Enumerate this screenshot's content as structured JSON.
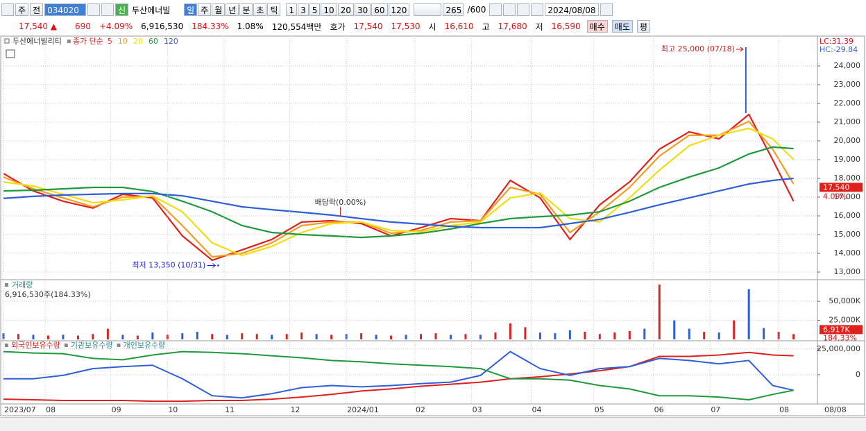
{
  "toolbar": {
    "market": "주",
    "prev": "전",
    "code": "034020",
    "badge": "신",
    "name": "두산에너빌",
    "periods": [
      "일",
      "주",
      "월",
      "년",
      "분",
      "초",
      "틱"
    ],
    "intervals": [
      "1",
      "3",
      "5",
      "10",
      "20",
      "30",
      "60",
      "120"
    ],
    "count": "265",
    "max": "/600",
    "date": "2024/08/08"
  },
  "quote": {
    "price": "17,540 ▲",
    "change": "690",
    "rate": "+4.09%",
    "volume": "6,916,530",
    "volume_ratio": "184.33%",
    "turnover": "1.08%",
    "amount": "120,554백만",
    "ask_label": "호가",
    "ask": "17,540",
    "bid": "17,530",
    "open_label": "시",
    "open": "16,610",
    "high_label": "고",
    "high": "17,680",
    "low_label": "저",
    "low": "16,590",
    "buy": "매수",
    "sell": "매도",
    "avg": "평"
  },
  "chart_data": [
    {
      "type": "line",
      "legend_name": "두산에너빌리티",
      "legend_ma_label": "종가 단순",
      "corner_labels": [
        "LC:31.39",
        "HC:-29.84"
      ],
      "x": [
        0,
        10,
        20,
        30,
        40,
        50,
        60,
        70,
        80,
        90,
        100,
        110,
        120,
        130,
        140,
        150,
        160,
        170,
        180,
        190,
        200,
        210,
        220,
        230,
        240,
        250,
        258,
        265
      ],
      "series": [
        {
          "name": "5",
          "color": "#e0201b",
          "values": [
            18260,
            17330,
            16780,
            16410,
            17150,
            16960,
            14930,
            13630,
            14180,
            14740,
            15670,
            15740,
            15590,
            14930,
            15370,
            15850,
            15740,
            17890,
            16960,
            14740,
            16590,
            17810,
            19560,
            20480,
            20110,
            21410,
            19000,
            16780
          ]
        },
        {
          "name": "10",
          "color": "#f39c1f",
          "values": [
            18070,
            17440,
            16960,
            16480,
            17000,
            17040,
            15480,
            13810,
            14000,
            14560,
            15480,
            15670,
            15670,
            15070,
            15220,
            15670,
            15740,
            17520,
            17150,
            15110,
            16220,
            17520,
            19190,
            20300,
            20300,
            21040,
            19560,
            17700
          ]
        },
        {
          "name": "20",
          "color": "#f2dc12",
          "values": [
            17810,
            17590,
            17150,
            16700,
            16850,
            17070,
            16220,
            14560,
            13890,
            14370,
            15110,
            15590,
            15670,
            15220,
            15150,
            15480,
            15670,
            16960,
            17220,
            15850,
            15670,
            16960,
            18440,
            19740,
            20300,
            20670,
            20110,
            19000
          ]
        },
        {
          "name": "60",
          "color": "#1e9a3c",
          "values": [
            17330,
            17370,
            17440,
            17520,
            17520,
            17300,
            16780,
            16220,
            15480,
            15110,
            15000,
            14930,
            14850,
            14930,
            15070,
            15300,
            15590,
            15850,
            15960,
            16040,
            16220,
            16780,
            17520,
            18070,
            18560,
            19300,
            19670,
            19590
          ]
        },
        {
          "name": "120",
          "color": "#2f5fd8",
          "values": [
            16930,
            17040,
            17110,
            17150,
            17190,
            17190,
            17070,
            16780,
            16480,
            16330,
            16190,
            16040,
            15850,
            15670,
            15560,
            15440,
            15370,
            15370,
            15370,
            15590,
            15810,
            16190,
            16590,
            16960,
            17330,
            17700,
            17890,
            18000
          ]
        }
      ],
      "xlim": [
        0,
        273
      ],
      "ylim": [
        12630,
        25480
      ],
      "yticks": [
        {
          "value": 13000,
          "label": "13,000"
        },
        {
          "value": 14000,
          "label": "14,000"
        },
        {
          "value": 15000,
          "label": "15,000"
        },
        {
          "value": 16000,
          "label": "16,000"
        },
        {
          "value": 17000,
          "label": "17,000"
        },
        {
          "value": 18000,
          "label": "18,000"
        },
        {
          "value": 19000,
          "label": "19,000"
        },
        {
          "value": 20000,
          "label": "20,000"
        },
        {
          "value": 21000,
          "label": "21,000"
        },
        {
          "value": 22000,
          "label": "22,000"
        },
        {
          "value": 23000,
          "label": "23,000"
        },
        {
          "value": 24000,
          "label": "24,000"
        }
      ],
      "grid": true,
      "high_point": {
        "x": 249,
        "y": 25000,
        "label": "최고 25,000 (07/18)"
      },
      "low_point": {
        "x": 72,
        "y": 13350,
        "label": "최저 13,350 (10/31)"
      },
      "dividend": {
        "x": 113,
        "label": "배당락(0.00%)"
      },
      "last": {
        "value": 17540,
        "label": "17,540"
      },
      "change_label": "4.09%"
    },
    {
      "type": "bar",
      "title": "거래량",
      "subtitle": "6,916,530주(184.33%)",
      "x": [
        0,
        5,
        10,
        15,
        20,
        25,
        30,
        35,
        40,
        45,
        50,
        55,
        60,
        65,
        70,
        75,
        80,
        85,
        90,
        95,
        100,
        105,
        110,
        115,
        120,
        125,
        130,
        135,
        140,
        145,
        150,
        155,
        160,
        165,
        170,
        175,
        180,
        185,
        190,
        195,
        200,
        205,
        210,
        215,
        220,
        225,
        230,
        235,
        240,
        245,
        250,
        255,
        260,
        265
      ],
      "values": [
        8000,
        7000,
        6000,
        5000,
        6000,
        5000,
        7000,
        14000,
        6000,
        5000,
        9000,
        6000,
        8000,
        10000,
        7000,
        6000,
        8000,
        7000,
        6000,
        7000,
        9000,
        7000,
        6000,
        7000,
        8000,
        6000,
        5000,
        6000,
        7000,
        8000,
        6000,
        7000,
        6000,
        9000,
        21000,
        16000,
        9000,
        8000,
        12000,
        10000,
        7000,
        9000,
        11000,
        14000,
        72000,
        25000,
        14000,
        10000,
        9000,
        25000,
        66000,
        15000,
        10000,
        6917
      ],
      "colors": [
        "#2f5fd8",
        "#d22",
        "#2f5fd8",
        "#d22",
        "#2f5fd8",
        "#d22",
        "#d22",
        "#d22",
        "#2f5fd8",
        "#d22",
        "#2f5fd8",
        "#d22",
        "#2f5fd8",
        "#2f5fd8",
        "#d22",
        "#2f5fd8",
        "#d22",
        "#d22",
        "#2f5fd8",
        "#d22",
        "#d22",
        "#2f5fd8",
        "#d22",
        "#2f5fd8",
        "#d22",
        "#2f5fd8",
        "#d22",
        "#2f5fd8",
        "#d22",
        "#d22",
        "#2f5fd8",
        "#d22",
        "#2f5fd8",
        "#d22",
        "#d22",
        "#d22",
        "#2f5fd8",
        "#2f5fd8",
        "#2f5fd8",
        "#d22",
        "#d22",
        "#d22",
        "#d22",
        "#2f5fd8",
        "#d22",
        "#2f5fd8",
        "#2f5fd8",
        "#d22",
        "#2f5fd8",
        "#d22",
        "#2f5fd8",
        "#2f5fd8",
        "#d22",
        "#d22"
      ],
      "xlim": [
        0,
        273
      ],
      "ylim": [
        0,
        72000
      ],
      "yticks": [
        {
          "value": 25000,
          "label": "25,000K"
        },
        {
          "value": 50000,
          "label": "50,000K"
        }
      ],
      "last": {
        "value": 6917,
        "label": "6,917K"
      },
      "ratio_label": "184.33%"
    },
    {
      "type": "line",
      "x": [
        0,
        10,
        20,
        30,
        40,
        50,
        60,
        70,
        80,
        90,
        100,
        110,
        120,
        130,
        140,
        150,
        160,
        170,
        180,
        190,
        200,
        210,
        220,
        230,
        240,
        250,
        258,
        265
      ],
      "series": [
        {
          "name": "외국인보유수량",
          "color": "#e0201b",
          "values": [
            -23700000,
            -24300000,
            -25000000,
            -25000000,
            -25000000,
            -25700000,
            -25700000,
            -25000000,
            -25000000,
            -23700000,
            -21700000,
            -19100000,
            -15800000,
            -13800000,
            -11200000,
            -9200000,
            -7200000,
            -3900000,
            -2000000,
            700000,
            3900000,
            7900000,
            17800000,
            17800000,
            19100000,
            21700000,
            19100000,
            18400000
          ]
        },
        {
          "name": "기관보유수량",
          "color": "#2f5fd8",
          "values": [
            -3900000,
            -3900000,
            -700000,
            5900000,
            7900000,
            9200000,
            -3900000,
            -20400000,
            -22400000,
            -18400000,
            -12500000,
            -10500000,
            -11800000,
            -10500000,
            -8600000,
            -7200000,
            -700000,
            22400000,
            5900000,
            -700000,
            5900000,
            7900000,
            15800000,
            13800000,
            10500000,
            13800000,
            -10500000,
            -15100000
          ]
        },
        {
          "name": "개인보유수량",
          "color": "#1e9a3c",
          "values": [
            22400000,
            21100000,
            20400000,
            15800000,
            14500000,
            19100000,
            22400000,
            21700000,
            20400000,
            18400000,
            16400000,
            13800000,
            12500000,
            10500000,
            9200000,
            7900000,
            5900000,
            -3900000,
            -3900000,
            -5300000,
            -10500000,
            -13800000,
            -20400000,
            -20400000,
            -21700000,
            -24300000,
            -19100000,
            -15100000
          ]
        }
      ],
      "xlim": [
        0,
        273
      ],
      "ylim": [
        -27000000,
        30900000
      ],
      "yticks": [
        {
          "value": 25000000,
          "label": "25,000,000"
        },
        0
      ],
      "xticks": [
        {
          "value": 0,
          "label": "2023/07"
        },
        {
          "value": 14,
          "label": "08"
        },
        {
          "value": 36,
          "label": "09"
        },
        {
          "value": 55,
          "label": "10"
        },
        {
          "value": 74,
          "label": "11"
        },
        {
          "value": 96,
          "label": "12"
        },
        {
          "value": 115,
          "label": "2024/01"
        },
        {
          "value": 138,
          "label": "02"
        },
        {
          "value": 157,
          "label": "03"
        },
        {
          "value": 177,
          "label": "04"
        },
        {
          "value": 198,
          "label": "05"
        },
        {
          "value": 218,
          "label": "06"
        },
        {
          "value": 237,
          "label": "07"
        },
        {
          "value": 260,
          "label": "08"
        }
      ],
      "cursor_label": "08/08"
    }
  ]
}
